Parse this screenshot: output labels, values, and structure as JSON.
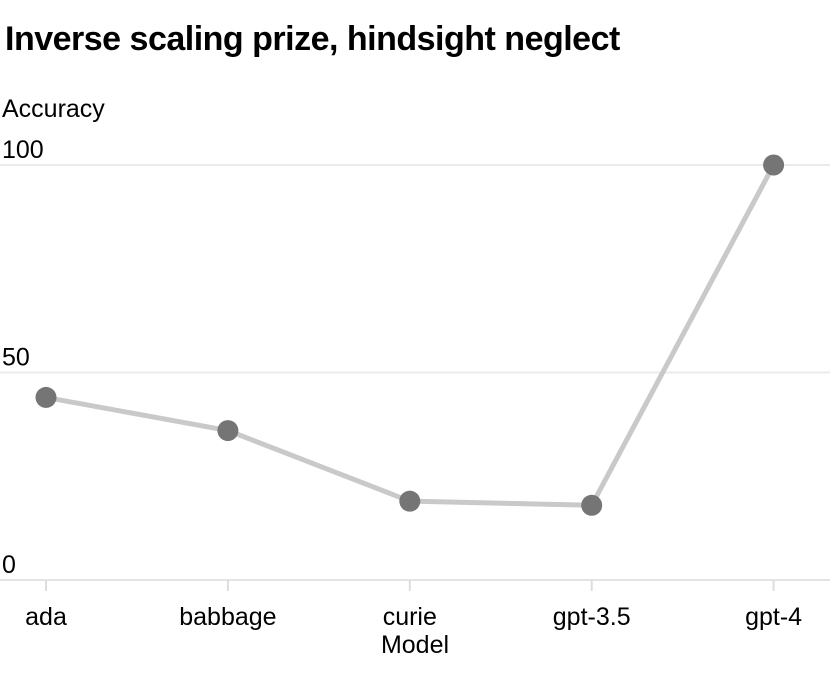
{
  "chart_data": {
    "type": "line",
    "title": "Inverse scaling prize, hindsight neglect",
    "ylabel": "Accuracy",
    "xlabel": "Model",
    "categories": [
      "ada",
      "babbage",
      "curie",
      "gpt-3.5",
      "gpt-4"
    ],
    "series": [
      {
        "name": "accuracy",
        "values": [
          44,
          36,
          19,
          18,
          100
        ]
      }
    ],
    "yticks": [
      0,
      50,
      100
    ],
    "ylim": [
      0,
      100
    ],
    "grid": true,
    "legend": "none",
    "colors": {
      "point": "#757575",
      "line": "#c9c9c9",
      "gridline": "#ebebeb",
      "axis_line": "#e3e3e3",
      "tick_mark": "#dddddd",
      "text": "#000000",
      "background": "#ffffff"
    }
  }
}
